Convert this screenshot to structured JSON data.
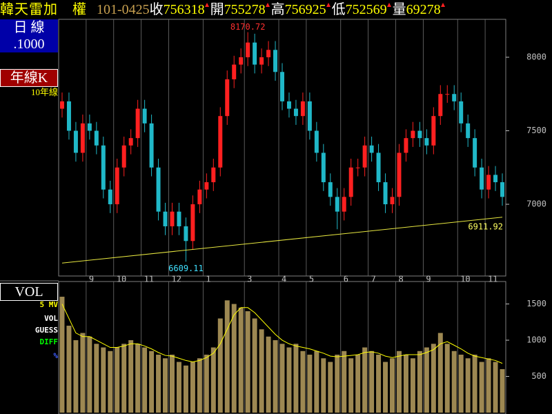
{
  "header": {
    "name": "韓天雷加　權",
    "date": "101-0425",
    "items": [
      {
        "label": "收",
        "value": "756318"
      },
      {
        "label": "開",
        "value": "755278"
      },
      {
        "label": "高",
        "value": "756925"
      },
      {
        "label": "低",
        "value": "752569"
      },
      {
        "label": "量",
        "value": "69278"
      }
    ]
  },
  "left_panel": {
    "period": "日 線",
    "scale": ".1000",
    "mode": "年線K"
  },
  "vol_panel": {
    "title": "VOL",
    "labels": [
      "5 MV",
      "VOL",
      "GUESS",
      "DIFF",
      "%"
    ]
  },
  "chart_data": [
    {
      "type": "candlestick",
      "categories": [
        null,
        null,
        null,
        null,
        "9",
        null,
        null,
        null,
        "10",
        null,
        null,
        null,
        "11",
        null,
        null,
        null,
        "12",
        null,
        null,
        null,
        null,
        "1",
        null,
        null,
        null,
        null,
        null,
        "3",
        null,
        null,
        null,
        null,
        "4",
        null,
        null,
        null,
        "5",
        null,
        null,
        null,
        null,
        "6",
        null,
        null,
        null,
        "7",
        null,
        null,
        null,
        "8",
        null,
        null,
        null,
        "9",
        null,
        null,
        null,
        null,
        "10",
        null,
        null,
        null,
        "11",
        null,
        null
      ],
      "open": [
        7650,
        7700,
        7500,
        7350,
        7550,
        7500,
        7400,
        7100,
        7000,
        7250,
        7400,
        7450,
        7650,
        7550,
        7250,
        6950,
        6850,
        6950,
        6850,
        6750,
        7000,
        7100,
        7150,
        7250,
        7600,
        7850,
        7950,
        8000,
        8100,
        7950,
        8000,
        8050,
        7900,
        7700,
        7650,
        7600,
        7700,
        7500,
        7350,
        7150,
        7050,
        6950,
        7050,
        7250,
        7250,
        7400,
        7350,
        7150,
        7000,
        7050,
        7350,
        7450,
        7500,
        7450,
        7400,
        7600,
        7750,
        7750,
        7700,
        7550,
        7450,
        7250,
        7100,
        7200,
        7150
      ],
      "high": [
        7760,
        7760,
        7560,
        7610,
        7610,
        7560,
        7460,
        7160,
        7310,
        7460,
        7510,
        7710,
        7710,
        7610,
        7310,
        7010,
        7010,
        7010,
        6910,
        7060,
        7160,
        7210,
        7310,
        7660,
        7910,
        8010,
        8060,
        8170.72,
        8160,
        8060,
        8110,
        8110,
        7960,
        7760,
        7710,
        7760,
        7760,
        7560,
        7410,
        7210,
        7110,
        7110,
        7310,
        7310,
        7460,
        7460,
        7410,
        7210,
        7110,
        7410,
        7510,
        7560,
        7560,
        7510,
        7660,
        7810,
        7810,
        7810,
        7760,
        7610,
        7510,
        7310,
        7260,
        7260,
        7210
      ],
      "low": [
        7590,
        7440,
        7290,
        7290,
        7440,
        7340,
        7040,
        6940,
        6940,
        7190,
        7340,
        7390,
        7490,
        7190,
        6890,
        6790,
        6790,
        6790,
        6609.11,
        6690,
        6940,
        7040,
        7090,
        7190,
        7540,
        7790,
        7890,
        7940,
        7890,
        7890,
        7940,
        7840,
        7640,
        7590,
        7540,
        7540,
        7440,
        7290,
        7090,
        6990,
        6830,
        6890,
        6990,
        7190,
        7190,
        7290,
        7090,
        6940,
        6940,
        6990,
        7290,
        7390,
        7390,
        7340,
        7340,
        7540,
        7690,
        7640,
        7490,
        7390,
        7190,
        7040,
        7040,
        7090,
        6990
      ],
      "close": [
        7700,
        7500,
        7350,
        7550,
        7500,
        7400,
        7100,
        7000,
        7250,
        7400,
        7450,
        7650,
        7550,
        7250,
        6950,
        6850,
        6950,
        6850,
        6750,
        7000,
        7100,
        7150,
        7250,
        7600,
        7850,
        7950,
        8000,
        8100,
        7950,
        8000,
        8050,
        7900,
        7700,
        7650,
        7600,
        7700,
        7500,
        7350,
        7150,
        7050,
        6950,
        7050,
        7250,
        7250,
        7400,
        7350,
        7150,
        7000,
        7050,
        7350,
        7450,
        7500,
        7450,
        7400,
        7600,
        7750,
        7750,
        7700,
        7550,
        7450,
        7250,
        7100,
        7200,
        7150,
        7050
      ],
      "up_color": "#ff2020",
      "down_color": "#20b8c8",
      "ma": {
        "name": "10年線",
        "color": "#e8e840",
        "x": [
          0,
          64
        ],
        "values": [
          6600,
          6911.92
        ]
      },
      "ylim": [
        6512,
        8258
      ],
      "yticks": [
        7000,
        7500,
        8000
      ]
    },
    {
      "type": "bar",
      "values": [
        1600,
        1200,
        1000,
        1100,
        1050,
        950,
        900,
        850,
        900,
        950,
        1000,
        950,
        900,
        850,
        800,
        750,
        800,
        700,
        650,
        700,
        750,
        800,
        900,
        1300,
        1550,
        1500,
        1450,
        1400,
        1300,
        1150,
        1050,
        1000,
        950,
        900,
        950,
        850,
        800,
        850,
        750,
        700,
        800,
        850,
        750,
        800,
        900,
        850,
        800,
        700,
        750,
        850,
        800,
        750,
        850,
        900,
        950,
        1100,
        950,
        850,
        800,
        750,
        800,
        700,
        750,
        700,
        600
      ],
      "color": "#b8a060",
      "mv": {
        "color": "#ffff00",
        "values": [
          1500,
          1300,
          1100,
          1050,
          1050,
          1000,
          950,
          900,
          900,
          920,
          950,
          950,
          920,
          880,
          830,
          790,
          780,
          750,
          720,
          700,
          720,
          760,
          820,
          950,
          1150,
          1350,
          1450,
          1450,
          1380,
          1280,
          1180,
          1080,
          1000,
          950,
          920,
          900,
          880,
          850,
          820,
          780,
          770,
          780,
          790,
          800,
          830,
          840,
          820,
          780,
          760,
          780,
          800,
          800,
          800,
          830,
          870,
          950,
          980,
          930,
          880,
          820,
          780,
          760,
          740,
          720,
          680
        ]
      },
      "ylim": [
        0,
        1810
      ],
      "yticks": [
        500,
        1000,
        1500
      ]
    }
  ]
}
